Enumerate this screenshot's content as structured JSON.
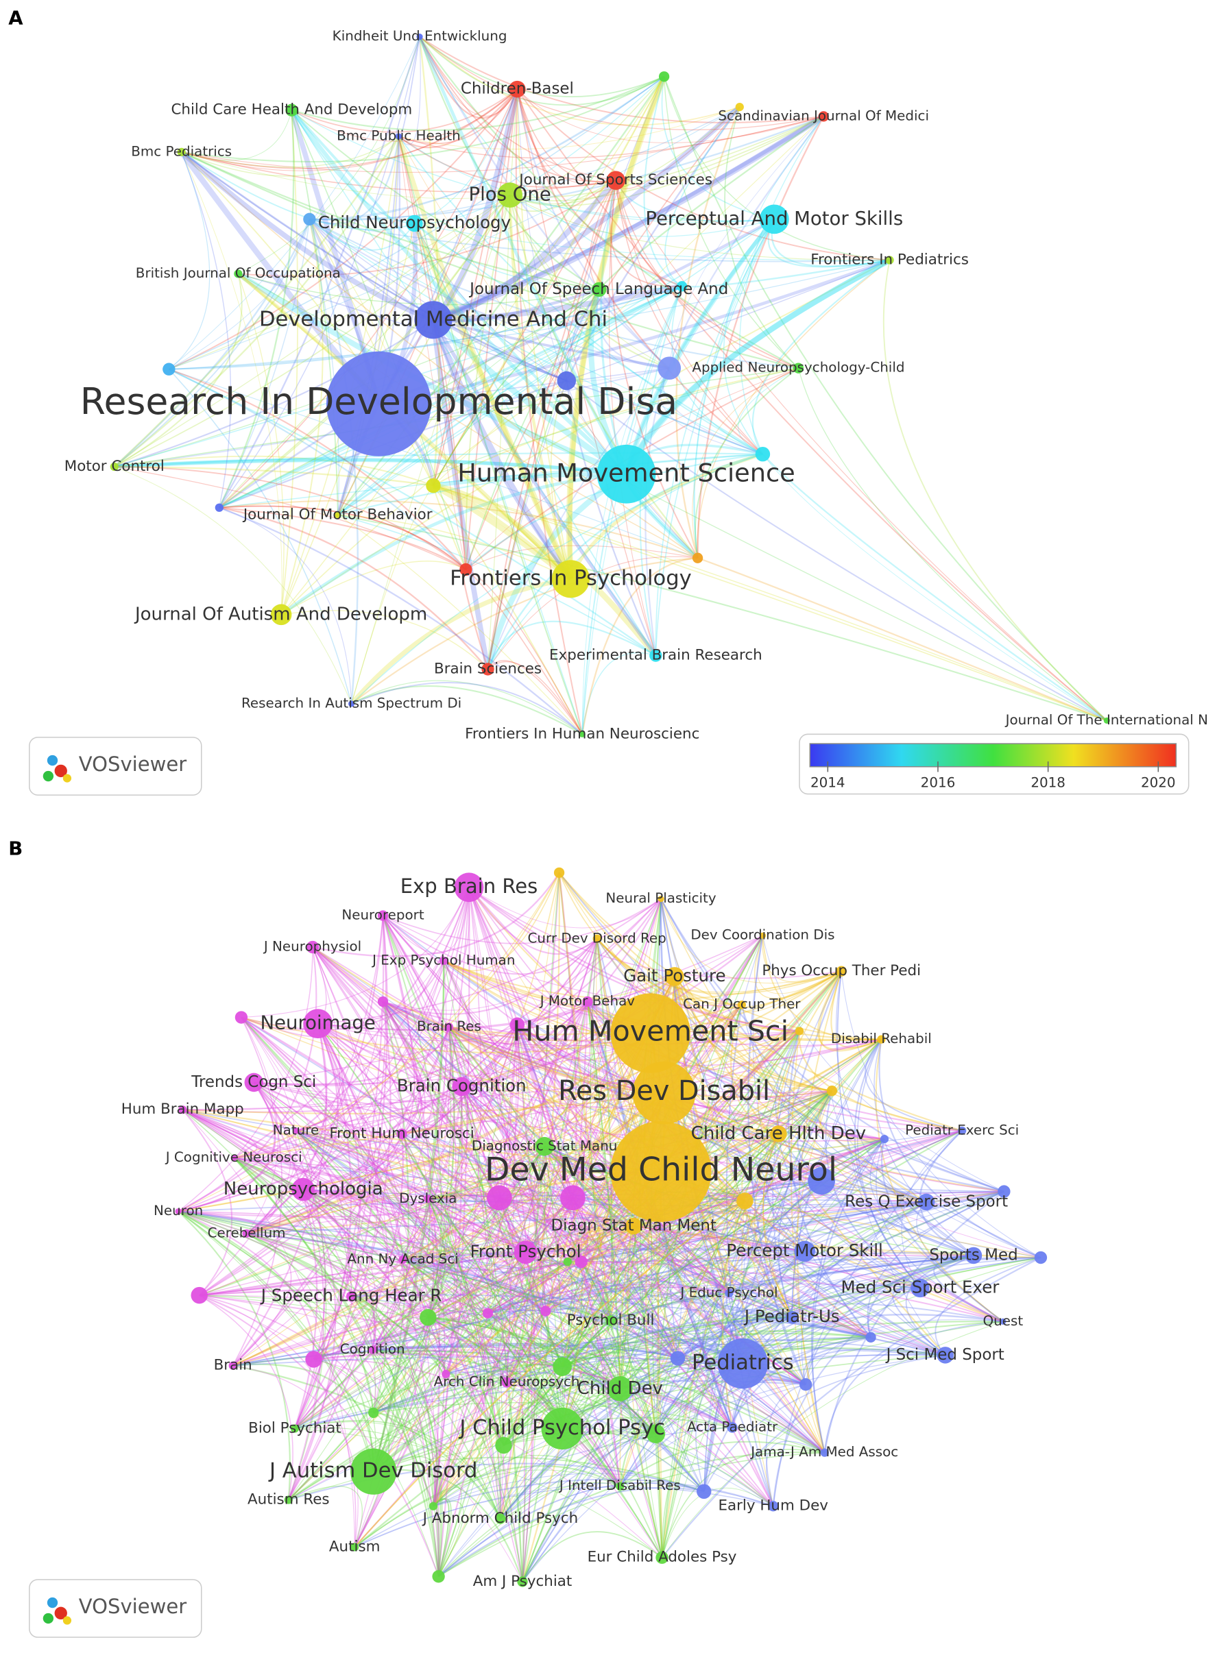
{
  "panels": [
    {
      "label": "A",
      "logo": "VOSviewer",
      "colorbar": {
        "ticks": [
          2014,
          2016,
          2018,
          2020
        ]
      },
      "nodes": [
        {
          "label": "Kindheit Und Entwicklung"
        },
        {
          "label": "Children-Basel"
        },
        {
          "label": "Scandinavian Journal Of Medici"
        },
        {
          "label": "Child Care Health And Developm"
        },
        {
          "label": "Bmc Public Health"
        },
        {
          "label": "Bmc Pediatrics"
        },
        {
          "label": "Plos One"
        },
        {
          "label": "Journal Of Sports Sciences"
        },
        {
          "label": "Perceptual And Motor Skills"
        },
        {
          "label": "Frontiers In Pediatrics"
        },
        {
          "label": "Child Neuropsychology"
        },
        {
          "label": "British Journal Of Occupationa"
        },
        {
          "label": "Journal Of Speech Language And"
        },
        {
          "label": "Developmental Medicine And Chi"
        },
        {
          "label": "Applied Neuropsychology-Child"
        },
        {
          "label": "Research In Developmental Disa"
        },
        {
          "label": "Motor Control"
        },
        {
          "label": "Human Movement Science"
        },
        {
          "label": "Journal Of Motor Behavior"
        },
        {
          "label": "Frontiers In Psychology"
        },
        {
          "label": "Journal Of Autism And Developm"
        },
        {
          "label": "Experimental Brain Research"
        },
        {
          "label": "Brain Sciences"
        },
        {
          "label": "Research In Autism Spectrum Di"
        },
        {
          "label": "Frontiers In Human Neuroscienc"
        },
        {
          "label": "Journal Of The International N"
        }
      ]
    },
    {
      "label": "B",
      "logo": "VOSviewer",
      "nodes": [
        {
          "label": "Exp Brain Res"
        },
        {
          "label": "Neuroreport"
        },
        {
          "label": "Neural Plasticity"
        },
        {
          "label": "J Neurophysiol"
        },
        {
          "label": "J Exp Psychol Human"
        },
        {
          "label": "Curr Dev Disord Rep"
        },
        {
          "label": "Dev Coordination Dis"
        },
        {
          "label": "Gait Posture"
        },
        {
          "label": "Phys Occup Ther Pedi"
        },
        {
          "label": "J Motor Behav"
        },
        {
          "label": "Can J Occup Ther"
        },
        {
          "label": "Neuroimage"
        },
        {
          "label": "Brain Res"
        },
        {
          "label": "Hum Movement Sci"
        },
        {
          "label": "Disabil Rehabil"
        },
        {
          "label": "Trends Cogn Sci"
        },
        {
          "label": "Brain Cognition"
        },
        {
          "label": "Res Dev Disabil"
        },
        {
          "label": "Hum Brain Mapp"
        },
        {
          "label": "Nature"
        },
        {
          "label": "Front Hum Neurosci"
        },
        {
          "label": "Diagnostic Stat Manu"
        },
        {
          "label": "Child Care Hlth Dev"
        },
        {
          "label": "Pediatr Exerc Sci"
        },
        {
          "label": "J Cognitive Neurosci"
        },
        {
          "label": "Dev Med Child Neurol"
        },
        {
          "label": "Neuropsychologia"
        },
        {
          "label": "Dyslexia"
        },
        {
          "label": "Neuron"
        },
        {
          "label": "Res Q Exercise Sport"
        },
        {
          "label": "Cerebellum"
        },
        {
          "label": "Diagn Stat Man Ment"
        },
        {
          "label": "Ann Ny Acad Sci"
        },
        {
          "label": "Front Psychol"
        },
        {
          "label": "Percept Motor Skill"
        },
        {
          "label": "Sports Med"
        },
        {
          "label": "Med Sci Sport Exer"
        },
        {
          "label": "J Educ Psychol"
        },
        {
          "label": "J Speech Lang Hear R"
        },
        {
          "label": "J Pediatr-Us"
        },
        {
          "label": "Psychol Bull"
        },
        {
          "label": "Quest"
        },
        {
          "label": "Cognition"
        },
        {
          "label": "J Sci Med Sport"
        },
        {
          "label": "Brain"
        },
        {
          "label": "Pediatrics"
        },
        {
          "label": "Arch Clin Neuropsych"
        },
        {
          "label": "Child Dev"
        },
        {
          "label": "Biol Psychiat"
        },
        {
          "label": "J Child Psychol Psyc"
        },
        {
          "label": "Acta Paediatr"
        },
        {
          "label": "Jama-J Am Med Assoc"
        },
        {
          "label": "J Autism Dev Disord"
        },
        {
          "label": "J Intell Disabil Res"
        },
        {
          "label": "Autism Res"
        },
        {
          "label": "J Abnorm Child Psych"
        },
        {
          "label": "Early Hum Dev"
        },
        {
          "label": "Autism"
        },
        {
          "label": "Eur Child Adoles Psy"
        },
        {
          "label": "Am J Psychiat"
        }
      ]
    }
  ]
}
